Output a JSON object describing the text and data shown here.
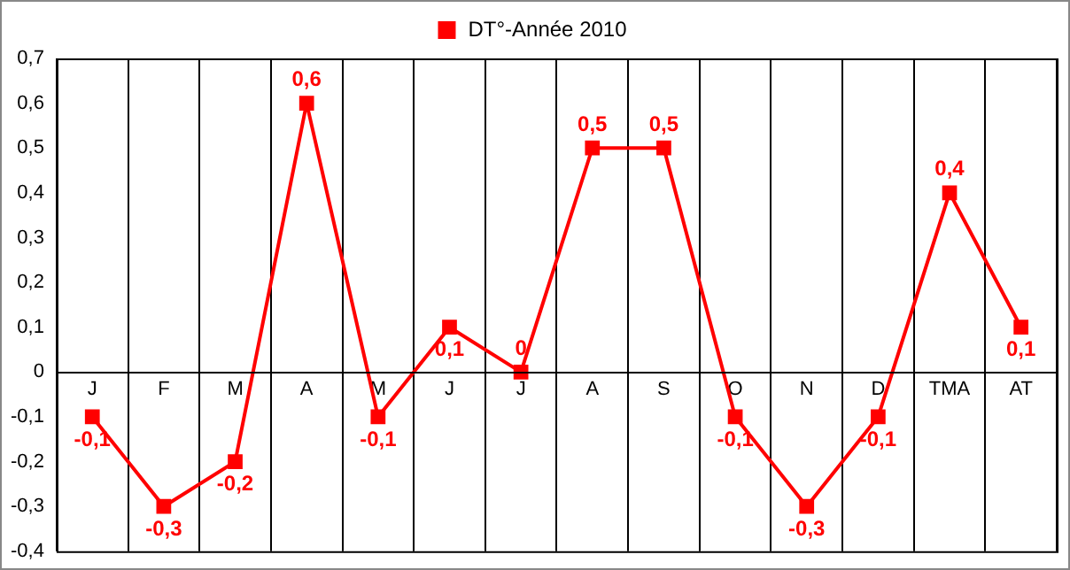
{
  "chart_data": {
    "type": "line",
    "categories": [
      "J",
      "F",
      "M",
      "A",
      "M",
      "J",
      "J",
      "A",
      "S",
      "O",
      "N",
      "D",
      "TMA",
      "AT"
    ],
    "series": [
      {
        "name": "DT°-Année 2010",
        "color": "#ff0000",
        "values": [
          -0.1,
          -0.3,
          -0.2,
          0.6,
          -0.1,
          0.1,
          0,
          0.5,
          0.5,
          -0.1,
          -0.3,
          -0.1,
          0.4,
          0.1
        ],
        "value_labels": [
          "-0,1",
          "-0,3",
          "-0,2",
          "0,6",
          "-0,1",
          "0,1",
          "0",
          "0,5",
          "0,5",
          "-0,1",
          "-0,3",
          "-0,1",
          "0,4",
          "0,1"
        ]
      }
    ],
    "ylim": [
      -0.4,
      0.7
    ],
    "yticks": [
      {
        "value": -0.4,
        "label": "-0,4"
      },
      {
        "value": -0.3,
        "label": "-0,3"
      },
      {
        "value": -0.2,
        "label": "-0,2"
      },
      {
        "value": -0.1,
        "label": "-0,1"
      },
      {
        "value": 0,
        "label": "0"
      },
      {
        "value": 0.1,
        "label": "0,1"
      },
      {
        "value": 0.2,
        "label": "0,2"
      },
      {
        "value": 0.3,
        "label": "0,3"
      },
      {
        "value": 0.4,
        "label": "0,4"
      },
      {
        "value": 0.5,
        "label": "0,5"
      },
      {
        "value": 0.6,
        "label": "0,6"
      },
      {
        "value": 0.7,
        "label": "0,7"
      }
    ],
    "grid": "x",
    "legend": "top",
    "marker": "square",
    "line_style": "solid"
  }
}
